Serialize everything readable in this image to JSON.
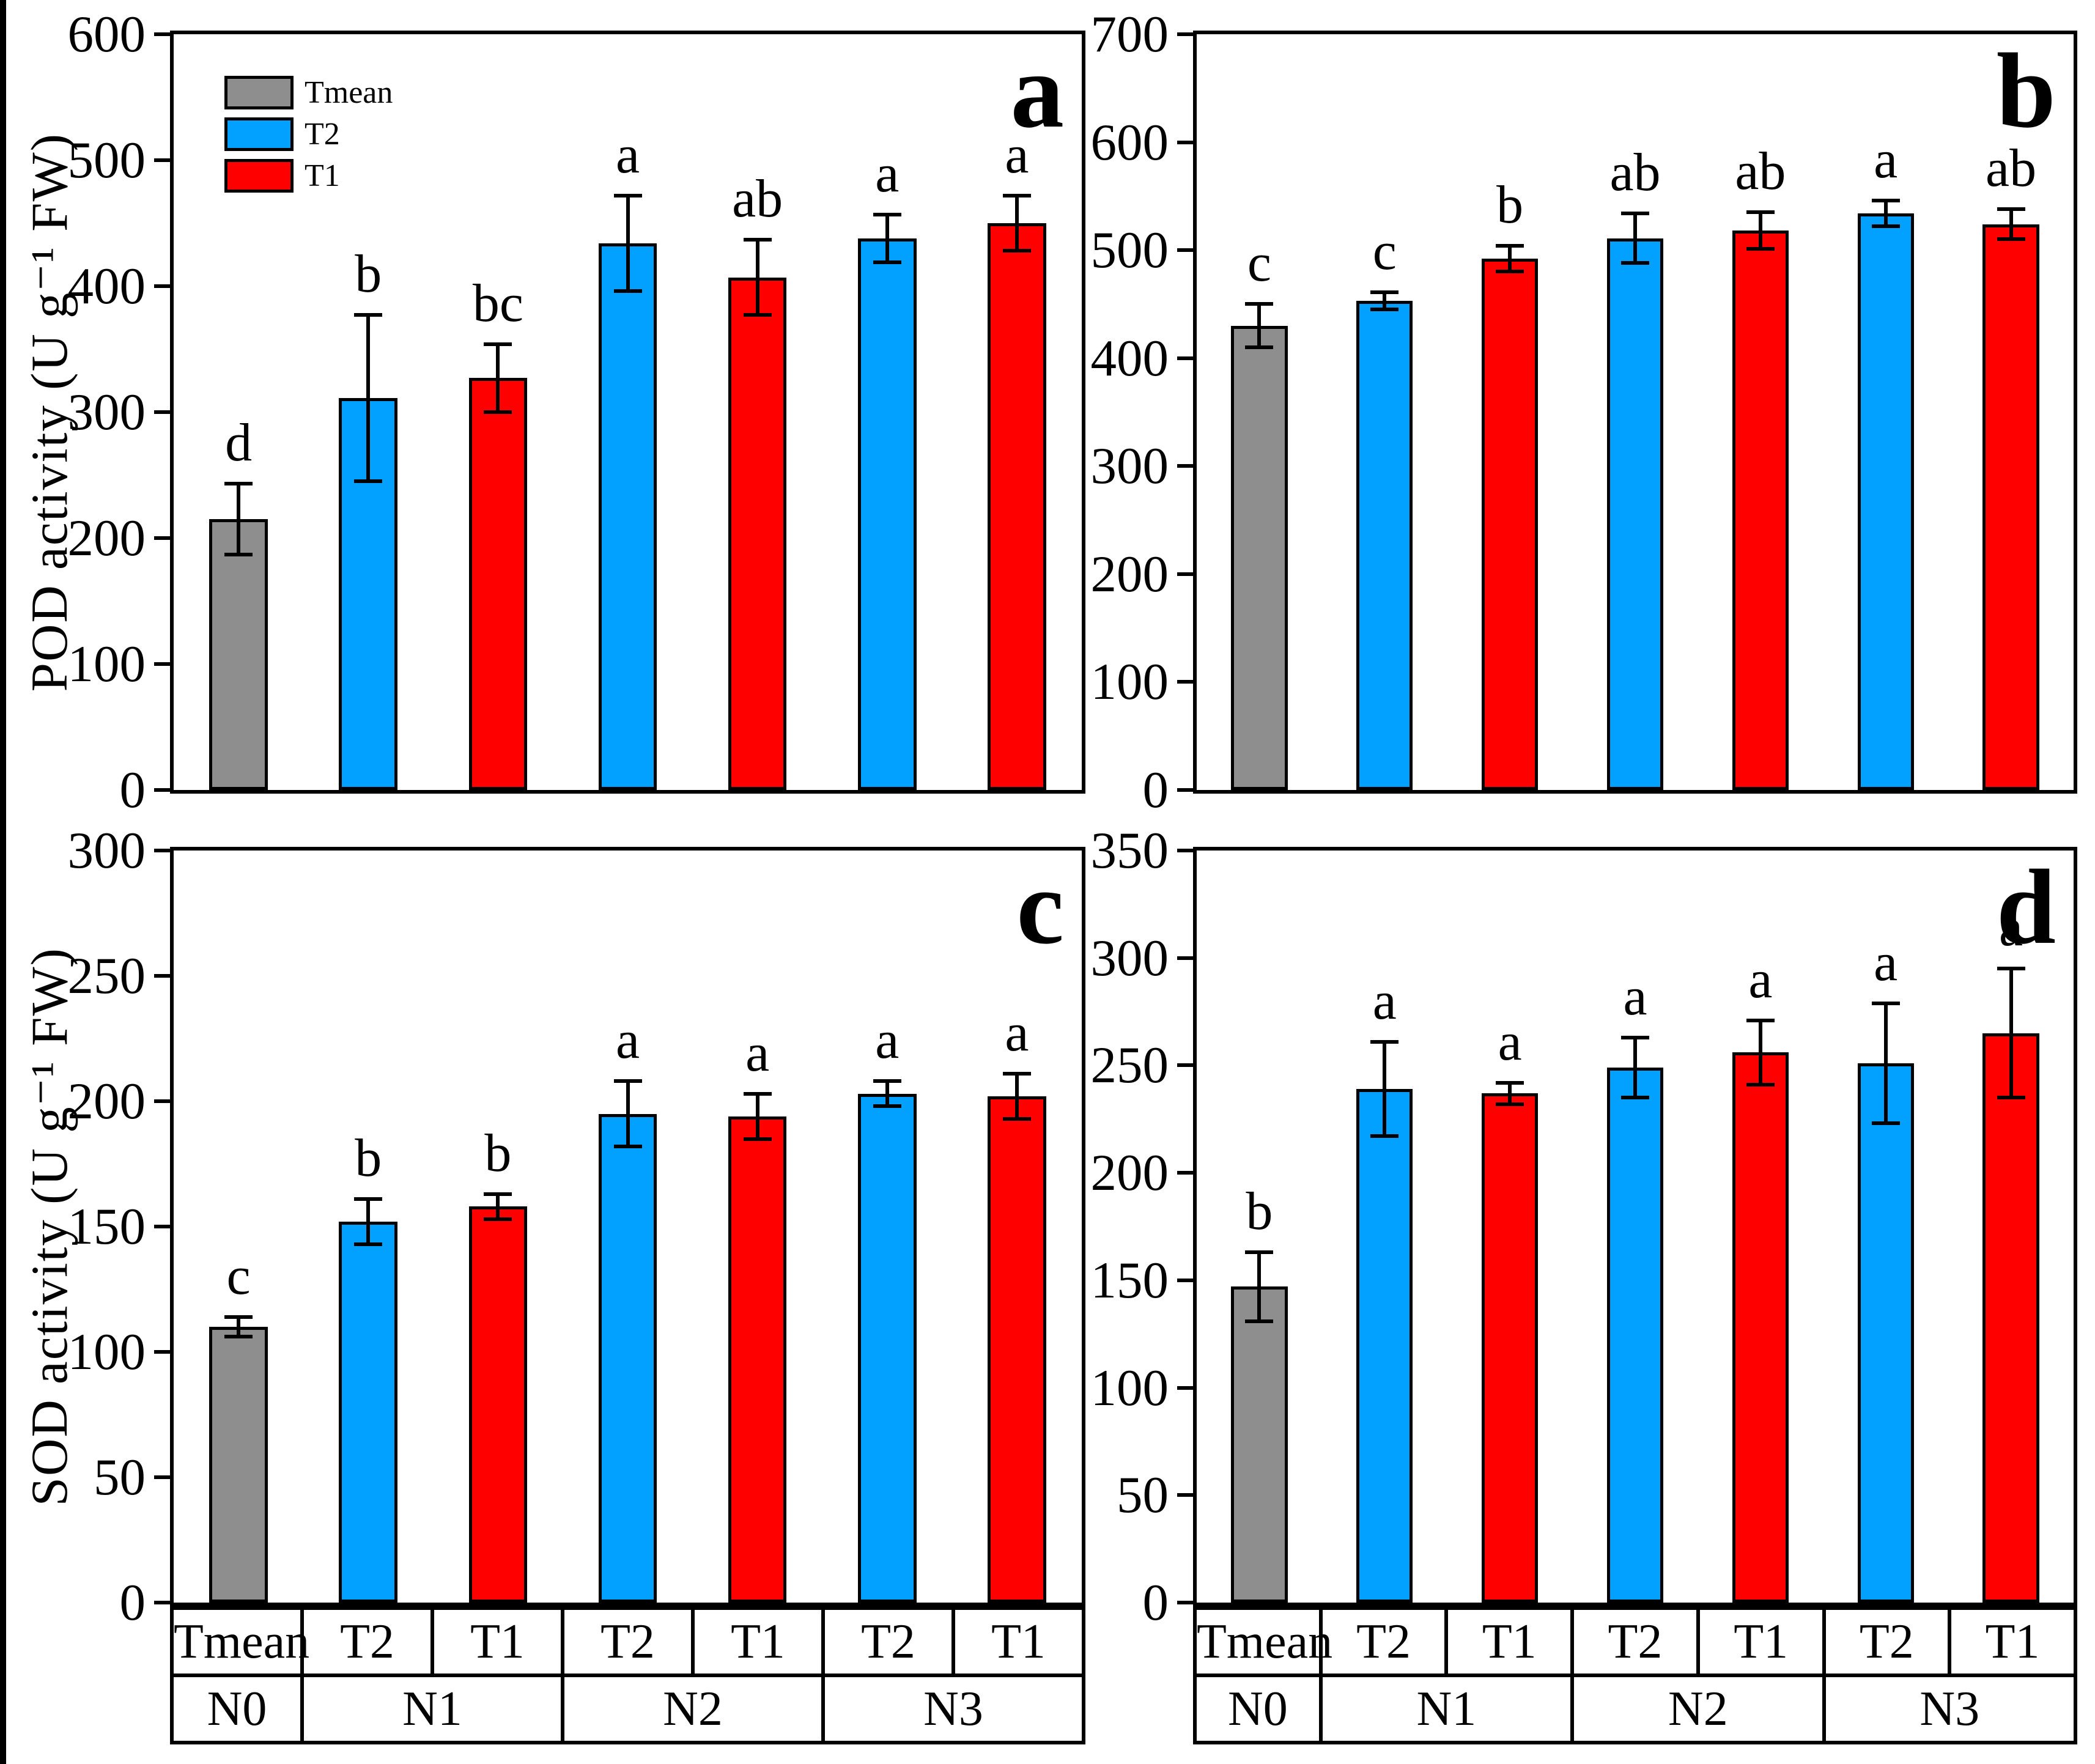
{
  "figure": {
    "background": "#FFFFFF",
    "edge_strip_color": "#000000"
  },
  "colors": {
    "tmean": "#8E8E8E",
    "t2": "#02A0FF",
    "t1": "#FF0000",
    "axis": "#000000"
  },
  "legend": {
    "items": [
      {
        "label": "Tmean",
        "color_key": "tmean"
      },
      {
        "label": "T2",
        "color_key": "t2"
      },
      {
        "label": "T1",
        "color_key": "t1"
      }
    ]
  },
  "x_table": {
    "treatments": [
      "Tmean",
      "T2",
      "T1",
      "T2",
      "T1",
      "T2",
      "T1"
    ],
    "groups": [
      {
        "label": "N0",
        "span": 1
      },
      {
        "label": "N1",
        "span": 2
      },
      {
        "label": "N2",
        "span": 2
      },
      {
        "label": "N3",
        "span": 2
      }
    ]
  },
  "chart_data": [
    {
      "type": "bar",
      "panel_label": "a",
      "ylabel": "POD activity (U g⁻¹ FW)",
      "ylim": [
        0,
        600
      ],
      "yticks": [
        0,
        100,
        200,
        300,
        400,
        500,
        600
      ],
      "legend_position": "upper-left",
      "grid": false,
      "bars": [
        {
          "group": "N0",
          "treatment": "Tmean",
          "color_key": "tmean",
          "value": 215,
          "error": 28,
          "letter": "d"
        },
        {
          "group": "N1",
          "treatment": "T2",
          "color_key": "t2",
          "value": 311,
          "error": 66,
          "letter": "b"
        },
        {
          "group": "N1",
          "treatment": "T1",
          "color_key": "t1",
          "value": 327,
          "error": 27,
          "letter": "bc"
        },
        {
          "group": "N2",
          "treatment": "T2",
          "color_key": "t2",
          "value": 434,
          "error": 38,
          "letter": "a"
        },
        {
          "group": "N2",
          "treatment": "T1",
          "color_key": "t1",
          "value": 407,
          "error": 30,
          "letter": "ab"
        },
        {
          "group": "N3",
          "treatment": "T2",
          "color_key": "t2",
          "value": 438,
          "error": 19,
          "letter": "a"
        },
        {
          "group": "N3",
          "treatment": "T1",
          "color_key": "t1",
          "value": 450,
          "error": 22,
          "letter": "a"
        }
      ]
    },
    {
      "type": "bar",
      "panel_label": "b",
      "ylabel": "",
      "ylim": [
        0,
        700
      ],
      "yticks": [
        0,
        100,
        200,
        300,
        400,
        500,
        600,
        700
      ],
      "grid": false,
      "bars": [
        {
          "group": "N0",
          "treatment": "Tmean",
          "color_key": "tmean",
          "value": 430,
          "error": 20,
          "letter": "c"
        },
        {
          "group": "N1",
          "treatment": "T2",
          "color_key": "t2",
          "value": 453,
          "error": 8,
          "letter": "c"
        },
        {
          "group": "N1",
          "treatment": "T1",
          "color_key": "t1",
          "value": 492,
          "error": 12,
          "letter": "b"
        },
        {
          "group": "N2",
          "treatment": "T2",
          "color_key": "t2",
          "value": 511,
          "error": 23,
          "letter": "ab"
        },
        {
          "group": "N2",
          "treatment": "T1",
          "color_key": "t1",
          "value": 518,
          "error": 17,
          "letter": "ab"
        },
        {
          "group": "N3",
          "treatment": "T2",
          "color_key": "t2",
          "value": 534,
          "error": 12,
          "letter": "a"
        },
        {
          "group": "N3",
          "treatment": "T1",
          "color_key": "t1",
          "value": 524,
          "error": 14,
          "letter": "ab"
        }
      ]
    },
    {
      "type": "bar",
      "panel_label": "c",
      "ylabel": "SOD activity (U g⁻¹ FW)",
      "ylim": [
        0,
        300
      ],
      "yticks": [
        0,
        50,
        100,
        150,
        200,
        250,
        300
      ],
      "grid": false,
      "bars": [
        {
          "group": "N0",
          "treatment": "Tmean",
          "color_key": "tmean",
          "value": 110,
          "error": 4,
          "letter": "c"
        },
        {
          "group": "N1",
          "treatment": "T2",
          "color_key": "t2",
          "value": 152,
          "error": 9,
          "letter": "b"
        },
        {
          "group": "N1",
          "treatment": "T1",
          "color_key": "t1",
          "value": 158,
          "error": 5,
          "letter": "b"
        },
        {
          "group": "N2",
          "treatment": "T2",
          "color_key": "t2",
          "value": 195,
          "error": 13,
          "letter": "a"
        },
        {
          "group": "N2",
          "treatment": "T1",
          "color_key": "t1",
          "value": 194,
          "error": 9,
          "letter": "a"
        },
        {
          "group": "N3",
          "treatment": "T2",
          "color_key": "t2",
          "value": 203,
          "error": 5,
          "letter": "a"
        },
        {
          "group": "N3",
          "treatment": "T1",
          "color_key": "t1",
          "value": 202,
          "error": 9,
          "letter": "a"
        }
      ]
    },
    {
      "type": "bar",
      "panel_label": "d",
      "ylabel": "",
      "ylim": [
        0,
        350
      ],
      "yticks": [
        0,
        50,
        100,
        150,
        200,
        250,
        300,
        350
      ],
      "grid": false,
      "bars": [
        {
          "group": "N0",
          "treatment": "Tmean",
          "color_key": "tmean",
          "value": 147,
          "error": 16,
          "letter": "b"
        },
        {
          "group": "N1",
          "treatment": "T2",
          "color_key": "t2",
          "value": 239,
          "error": 22,
          "letter": "a"
        },
        {
          "group": "N1",
          "treatment": "T1",
          "color_key": "t1",
          "value": 237,
          "error": 5,
          "letter": "a"
        },
        {
          "group": "N2",
          "treatment": "T2",
          "color_key": "t2",
          "value": 249,
          "error": 14,
          "letter": "a"
        },
        {
          "group": "N2",
          "treatment": "T1",
          "color_key": "t1",
          "value": 256,
          "error": 15,
          "letter": "a"
        },
        {
          "group": "N3",
          "treatment": "T2",
          "color_key": "t2",
          "value": 251,
          "error": 28,
          "letter": "a"
        },
        {
          "group": "N3",
          "treatment": "T1",
          "color_key": "t1",
          "value": 265,
          "error": 30,
          "letter": "a"
        }
      ]
    }
  ]
}
